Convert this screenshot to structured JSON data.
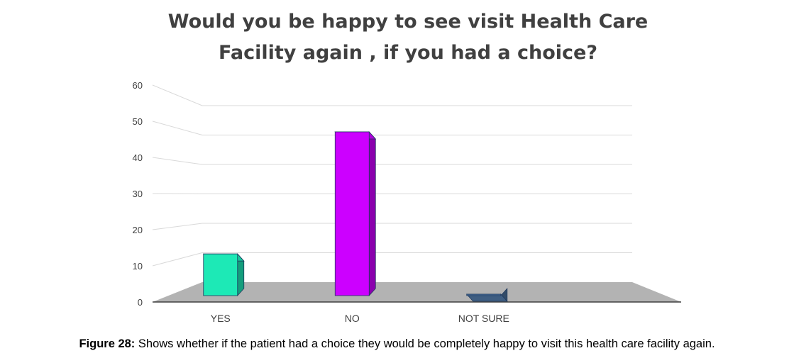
{
  "chart_data": {
    "type": "bar",
    "title_lines": [
      "Would you be happy to see visit Health Care",
      "Facility again , if you had a choice?"
    ],
    "categories": [
      "YES",
      "NO",
      "NOT SURE"
    ],
    "values": [
      14,
      55,
      0
    ],
    "colors": [
      "#1de9b6",
      "#cc00ff",
      "#4a6e99"
    ],
    "yticks": [
      0,
      10,
      20,
      30,
      40,
      50,
      60
    ],
    "ylim": [
      0,
      60
    ],
    "grid": true,
    "xlabel": "",
    "ylabel": ""
  },
  "caption": {
    "label": "Figure 28:",
    "text": " Shows whether if the patient had a choice they would be completely happy to visit this health care facility again."
  }
}
